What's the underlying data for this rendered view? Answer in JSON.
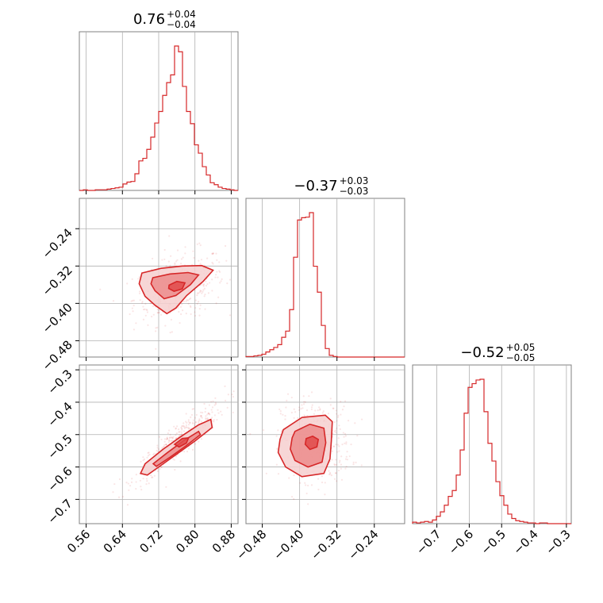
{
  "chart_data": {
    "type": "corner",
    "color": "#d62728",
    "fill_colors": [
      "#f6cfcf",
      "#ec8c8c",
      "#e04a4a"
    ],
    "parameters": [
      {
        "median": "0.76",
        "plus": "+0.04",
        "minus": "−0.04",
        "range": [
          0.545,
          0.895
        ],
        "ticks": [
          "0.56",
          "0.64",
          "0.72",
          "0.80",
          "0.88"
        ],
        "tick_values": [
          0.56,
          0.64,
          0.72,
          0.8,
          0.88
        ],
        "center": 0.765,
        "sigma": 0.04
      },
      {
        "median": "−0.37",
        "plus": "+0.03",
        "minus": "−0.03",
        "range": [
          -0.515,
          -0.175
        ],
        "ticks": [
          "−0.48",
          "−0.40",
          "−0.32",
          "−0.24"
        ],
        "tick_values": [
          -0.48,
          -0.4,
          -0.32,
          -0.24
        ],
        "center": -0.365,
        "sigma": 0.03
      },
      {
        "median": "−0.52",
        "plus": "+0.05",
        "minus": "−0.05",
        "range": [
          -0.775,
          -0.285
        ],
        "ticks": [
          "−0.7",
          "−0.6",
          "−0.5",
          "−0.4",
          "−0.3"
        ],
        "tick_values": [
          -0.7,
          -0.6,
          -0.5,
          -0.4,
          -0.3
        ],
        "center": -0.52,
        "sigma": 0.05
      }
    ],
    "histograms": [
      {
        "param": 0,
        "x_range": [
          0.545,
          0.895
        ],
        "counts": [
          0,
          1,
          0,
          0,
          1,
          1,
          1,
          2,
          3,
          4,
          5,
          10,
          13,
          14,
          26,
          46,
          50,
          64,
          83,
          105,
          123,
          148,
          168,
          180,
          225,
          216,
          162,
          123,
          104,
          71,
          58,
          37,
          24,
          12,
          9,
          5,
          3,
          2,
          1,
          0
        ]
      },
      {
        "param": 1,
        "x_range": [
          -0.515,
          -0.175
        ],
        "counts": [
          1,
          1,
          2,
          3,
          5,
          9,
          13,
          17,
          22,
          35,
          46,
          84,
          177,
          243,
          247,
          248,
          256,
          161,
          115,
          56,
          15,
          3,
          1,
          0,
          0,
          0,
          0,
          0,
          0,
          0,
          0,
          0,
          0,
          0,
          0,
          0,
          0,
          0,
          0,
          0
        ]
      },
      {
        "param": 2,
        "x_range": [
          -0.775,
          -0.285
        ],
        "counts": [
          2,
          1,
          2,
          3,
          2,
          5,
          10,
          16,
          25,
          37,
          45,
          66,
          100,
          150,
          185,
          190,
          195,
          196,
          152,
          109,
          85,
          57,
          38,
          25,
          13,
          7,
          4,
          3,
          2,
          1,
          1,
          0,
          1,
          1,
          0,
          0,
          0,
          0,
          0,
          0
        ]
      }
    ],
    "contours": [
      {
        "x_param": 0,
        "y_param": 1,
        "levels": [
          [
            [
              0.683,
              -0.335
            ],
            [
              0.725,
              -0.325
            ],
            [
              0.772,
              -0.32
            ],
            [
              0.815,
              -0.319
            ],
            [
              0.84,
              -0.329
            ],
            [
              0.818,
              -0.353
            ],
            [
              0.782,
              -0.383
            ],
            [
              0.758,
              -0.41
            ],
            [
              0.738,
              -0.422
            ],
            [
              0.712,
              -0.404
            ],
            [
              0.69,
              -0.385
            ],
            [
              0.677,
              -0.358
            ]
          ],
          [
            [
              0.707,
              -0.345
            ],
            [
              0.745,
              -0.337
            ],
            [
              0.785,
              -0.334
            ],
            [
              0.808,
              -0.339
            ],
            [
              0.79,
              -0.36
            ],
            [
              0.758,
              -0.383
            ],
            [
              0.732,
              -0.39
            ],
            [
              0.712,
              -0.373
            ],
            [
              0.703,
              -0.358
            ]
          ],
          [
            [
              0.743,
              -0.361
            ],
            [
              0.76,
              -0.353
            ],
            [
              0.778,
              -0.356
            ],
            [
              0.772,
              -0.369
            ],
            [
              0.754,
              -0.374
            ],
            [
              0.742,
              -0.368
            ]
          ]
        ]
      },
      {
        "x_param": 0,
        "y_param": 2,
        "levels": [
          [
            [
              0.68,
              -0.62
            ],
            [
              0.69,
              -0.59
            ],
            [
              0.73,
              -0.545
            ],
            [
              0.77,
              -0.505
            ],
            [
              0.808,
              -0.47
            ],
            [
              0.835,
              -0.453
            ],
            [
              0.838,
              -0.478
            ],
            [
              0.8,
              -0.52
            ],
            [
              0.76,
              -0.56
            ],
            [
              0.72,
              -0.6
            ],
            [
              0.695,
              -0.625
            ]
          ],
          [
            [
              0.708,
              -0.59
            ],
            [
              0.74,
              -0.555
            ],
            [
              0.776,
              -0.518
            ],
            [
              0.808,
              -0.49
            ],
            [
              0.812,
              -0.5
            ],
            [
              0.78,
              -0.535
            ],
            [
              0.745,
              -0.57
            ],
            [
              0.715,
              -0.598
            ]
          ],
          [
            [
              0.755,
              -0.53
            ],
            [
              0.772,
              -0.512
            ],
            [
              0.786,
              -0.51
            ],
            [
              0.781,
              -0.526
            ],
            [
              0.765,
              -0.538
            ]
          ]
        ]
      },
      {
        "x_param": 1,
        "y_param": 2,
        "levels": [
          [
            [
              -0.435,
              -0.485
            ],
            [
              -0.395,
              -0.447
            ],
            [
              -0.345,
              -0.44
            ],
            [
              -0.33,
              -0.46
            ],
            [
              -0.332,
              -0.52
            ],
            [
              -0.335,
              -0.575
            ],
            [
              -0.348,
              -0.62
            ],
            [
              -0.395,
              -0.63
            ],
            [
              -0.43,
              -0.6
            ],
            [
              -0.446,
              -0.555
            ],
            [
              -0.442,
              -0.515
            ]
          ],
          [
            [
              -0.41,
              -0.49
            ],
            [
              -0.378,
              -0.468
            ],
            [
              -0.348,
              -0.48
            ],
            [
              -0.344,
              -0.525
            ],
            [
              -0.352,
              -0.585
            ],
            [
              -0.382,
              -0.6
            ],
            [
              -0.41,
              -0.58
            ],
            [
              -0.42,
              -0.545
            ],
            [
              -0.416,
              -0.51
            ]
          ],
          [
            [
              -0.386,
              -0.512
            ],
            [
              -0.372,
              -0.505
            ],
            [
              -0.36,
              -0.515
            ],
            [
              -0.363,
              -0.538
            ],
            [
              -0.378,
              -0.546
            ],
            [
              -0.388,
              -0.53
            ]
          ]
        ]
      }
    ]
  }
}
